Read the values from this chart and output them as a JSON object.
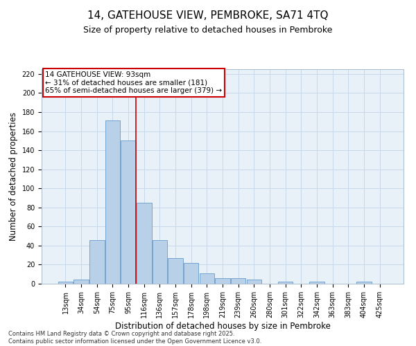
{
  "title1": "14, GATEHOUSE VIEW, PEMBROKE, SA71 4TQ",
  "title2": "Size of property relative to detached houses in Pembroke",
  "xlabel": "Distribution of detached houses by size in Pembroke",
  "ylabel": "Number of detached properties",
  "categories": [
    "13sqm",
    "34sqm",
    "54sqm",
    "75sqm",
    "95sqm",
    "116sqm",
    "136sqm",
    "157sqm",
    "178sqm",
    "198sqm",
    "219sqm",
    "239sqm",
    "260sqm",
    "280sqm",
    "301sqm",
    "322sqm",
    "342sqm",
    "363sqm",
    "383sqm",
    "404sqm",
    "425sqm"
  ],
  "values": [
    2,
    4,
    46,
    171,
    150,
    85,
    46,
    27,
    22,
    11,
    6,
    6,
    4,
    0,
    2,
    0,
    2,
    0,
    0,
    2,
    0
  ],
  "bar_color": "#b8d0e8",
  "bar_edge_color": "#6699cc",
  "grid_color": "#c8d8ea",
  "background_color": "#e8f0f8",
  "vline_x": 4.5,
  "vline_color": "#cc0000",
  "annotation_line1": "14 GATEHOUSE VIEW: 93sqm",
  "annotation_line2": "← 31% of detached houses are smaller (181)",
  "annotation_line3": "65% of semi-detached houses are larger (379) →",
  "annotation_box_color": "white",
  "annotation_box_edge": "#cc0000",
  "ylim": [
    0,
    225
  ],
  "yticks": [
    0,
    20,
    40,
    60,
    80,
    100,
    120,
    140,
    160,
    180,
    200,
    220
  ],
  "footnote": "Contains HM Land Registry data © Crown copyright and database right 2025.\nContains public sector information licensed under the Open Government Licence v3.0.",
  "title1_fontsize": 11,
  "title2_fontsize": 9,
  "xlabel_fontsize": 8.5,
  "ylabel_fontsize": 8.5,
  "tick_fontsize": 7,
  "annotation_fontsize": 7.5,
  "footnote_fontsize": 6
}
